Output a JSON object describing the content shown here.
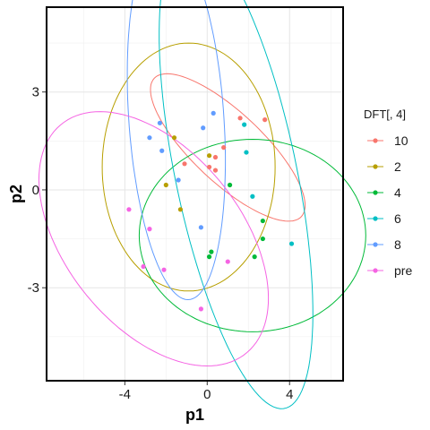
{
  "chart_data": {
    "type": "scatter",
    "xlabel": "p1",
    "ylabel": "p2",
    "xlim": [
      -7.8,
      6.6
    ],
    "ylim": [
      -5.85,
      5.6
    ],
    "x_ticks": [
      -4,
      0,
      4
    ],
    "y_ticks": [
      -3,
      0,
      3
    ],
    "x_tick_labels": [
      "-4",
      "0",
      "4"
    ],
    "y_tick_labels": [
      "-3",
      "0",
      "3"
    ],
    "grid": true,
    "legend_position": "right",
    "legend_title": "DFT[, 4]",
    "series": [
      {
        "name": "10",
        "color": "#F8766D",
        "x": [
          1.6,
          2.8,
          0.4,
          0.8,
          -1.1,
          0.1,
          0.4
        ],
        "y": [
          2.2,
          2.15,
          1.0,
          1.3,
          0.8,
          0.7,
          0.6
        ],
        "ellipse": {
          "cx": 1.0,
          "cy": 1.3,
          "rx": 4.2,
          "ry": 1.25,
          "angle_deg": -28
        }
      },
      {
        "name": "2",
        "color": "#B79F00",
        "x": [
          -1.6,
          0.1,
          -2.0,
          -1.3
        ],
        "y": [
          1.6,
          1.05,
          0.15,
          -0.6
        ],
        "ellipse": {
          "cx": -0.9,
          "cy": 0.7,
          "rx": 4.2,
          "ry": 3.8,
          "angle_deg": 0
        }
      },
      {
        "name": "4",
        "color": "#00BA38",
        "x": [
          1.1,
          2.7,
          2.7,
          2.3,
          0.2,
          0.1
        ],
        "y": [
          0.15,
          -0.95,
          -1.5,
          -2.05,
          -1.9,
          -2.05
        ],
        "ellipse": {
          "cx": 2.2,
          "cy": -1.4,
          "rx": 5.5,
          "ry": 2.95,
          "angle_deg": 0
        }
      },
      {
        "name": "6",
        "color": "#00BFC4",
        "x": [
          1.8,
          1.9,
          2.2,
          4.1
        ],
        "y": [
          2.0,
          1.15,
          -0.2,
          -1.65
        ],
        "ellipse": {
          "cx": 1.4,
          "cy": 0.5,
          "rx": 7.6,
          "ry": 2.85,
          "angle_deg": -70
        }
      },
      {
        "name": "8",
        "color": "#619CFF",
        "x": [
          -2.8,
          -2.3,
          -2.2,
          0.3,
          -0.2,
          -1.4,
          -0.3
        ],
        "y": [
          1.6,
          2.05,
          1.2,
          2.35,
          1.9,
          0.3,
          -1.15
        ],
        "ellipse": {
          "cx": -1.5,
          "cy": 2.2,
          "rx": 5.6,
          "ry": 2.3,
          "angle_deg": -83
        }
      },
      {
        "name": "pre",
        "color": "#F564E3",
        "x": [
          -3.8,
          -2.8,
          -3.1,
          -2.1,
          1.0,
          -0.3
        ],
        "y": [
          -0.6,
          -1.2,
          -2.35,
          -2.45,
          -2.2,
          -3.65
        ],
        "ellipse": {
          "cx": -2.6,
          "cy": -1.5,
          "rx": 6.0,
          "ry": 3.2,
          "angle_deg": -26
        }
      }
    ]
  }
}
